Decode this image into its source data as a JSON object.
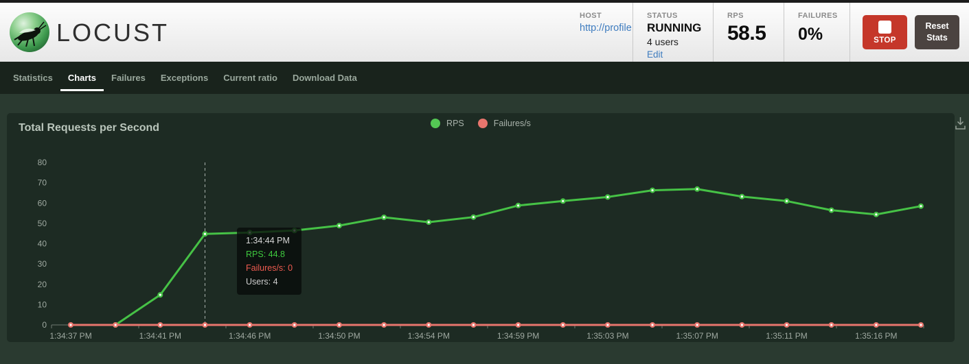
{
  "header": {
    "logo_text": "LOCUST",
    "host": {
      "label": "HOST",
      "url": "http://profile"
    },
    "status": {
      "label": "STATUS",
      "state": "RUNNING",
      "users": "4 users",
      "edit": "Edit"
    },
    "rps": {
      "label": "RPS",
      "value": "58.5"
    },
    "failures": {
      "label": "FAILURES",
      "value": "0%"
    },
    "stop_button": "STOP",
    "reset_button": "Reset Stats"
  },
  "colors": {
    "link_blue": "#3e7cbf",
    "stop_red": "#c5372a",
    "reset_gray": "#4b4340",
    "rps_green": "#46c246",
    "failures_red": "#e8756d",
    "panel_bg": "#1d2b23",
    "page_bg": "#2a3a30",
    "nav_bg": "#19231c"
  },
  "nav": {
    "tabs": [
      {
        "label": "Statistics",
        "active": false
      },
      {
        "label": "Charts",
        "active": true
      },
      {
        "label": "Failures",
        "active": false
      },
      {
        "label": "Exceptions",
        "active": false
      },
      {
        "label": "Current ratio",
        "active": false
      },
      {
        "label": "Download Data",
        "active": false
      }
    ]
  },
  "chart": {
    "title": "Total Requests per Second",
    "legend": [
      {
        "label": "RPS",
        "color": "#54c754"
      },
      {
        "label": "Failures/s",
        "color": "#e8756d"
      }
    ]
  },
  "tooltip": {
    "time": "1:34:44 PM",
    "rps": "RPS: 44.8",
    "failures": "Failures/s: 0",
    "users": "Users: 4"
  },
  "chart_data": {
    "type": "line",
    "title": "Total Requests per Second",
    "x_tick_labels": [
      "1:34:37 PM",
      "1:34:41 PM",
      "1:34:46 PM",
      "1:34:50 PM",
      "1:34:54 PM",
      "1:34:59 PM",
      "1:35:03 PM",
      "1:35:07 PM",
      "1:35:11 PM",
      "1:35:16 PM"
    ],
    "label_point_indices": [
      0,
      2,
      4,
      6,
      8,
      10,
      12,
      14,
      16,
      18
    ],
    "y_ticks": [
      0,
      10,
      20,
      30,
      40,
      50,
      60,
      70,
      80
    ],
    "ylim": [
      0,
      80
    ],
    "grid": false,
    "legend_position": "top-center",
    "hover_index": 3,
    "series": [
      {
        "name": "RPS",
        "color": "#46c246",
        "values": [
          null,
          0,
          14.8,
          44.8,
          45.5,
          46.5,
          48.9,
          53,
          50.6,
          53.1,
          58.8,
          61,
          63,
          66.3,
          66.9,
          63.2,
          61,
          56.5,
          54.4,
          58.5
        ]
      },
      {
        "name": "Failures/s",
        "color": "#e8756d",
        "values": [
          0,
          0,
          0,
          0,
          0,
          0,
          0,
          0,
          0,
          0,
          0,
          0,
          0,
          0,
          0,
          0,
          0,
          0,
          0,
          0
        ]
      }
    ]
  }
}
